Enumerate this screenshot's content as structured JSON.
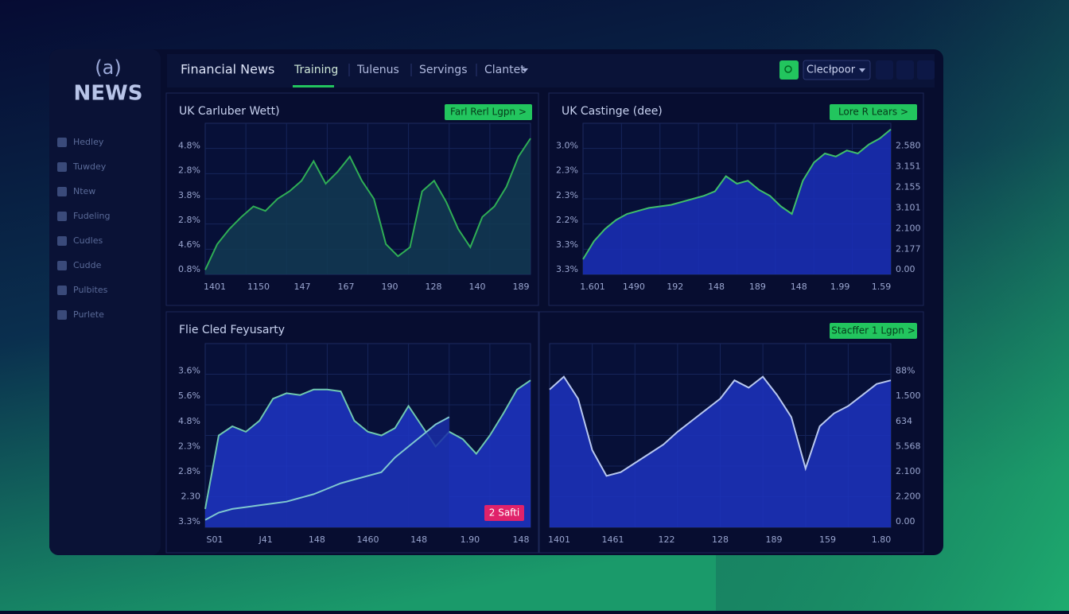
{
  "sidebar": {
    "logo_icon": "(a)",
    "logo": "NEWS",
    "items": [
      "Hedley",
      "Tuwdey",
      "Ntew",
      "Fudeling",
      "Cudles",
      "Cudde",
      "Pulbites",
      "Purlete"
    ]
  },
  "nav": {
    "title": "Financial News",
    "tabs": [
      "Training",
      "Tulenus",
      "Servings",
      "Clantet"
    ],
    "dropdown": "Clecłpoor"
  },
  "charts": [
    {
      "type": "area",
      "title": "UK Carluber Wett)",
      "button": "Farl Rerl Lgpn >",
      "y_labels": [
        "4.8%",
        "2.8%",
        "3.8%",
        "2.8%",
        "4.6%",
        "0.8%"
      ],
      "x_labels": [
        "1401",
        "1150",
        "147",
        "167",
        "190",
        "128",
        "140",
        "189"
      ],
      "ylim": [
        0,
        100
      ],
      "series": [
        {
          "color": "#2fae55",
          "fill": "#123a52",
          "values": [
            3,
            20,
            30,
            38,
            45,
            42,
            50,
            55,
            62,
            75,
            60,
            68,
            78,
            62,
            50,
            20,
            12,
            18,
            55,
            62,
            48,
            30,
            18,
            38,
            45,
            58,
            78,
            90
          ]
        }
      ]
    },
    {
      "type": "area",
      "title": "UK Castinge (dee)",
      "button": "Lore R Lears >",
      "y_labels": [
        "3.0%",
        "2.3%",
        "2.3%",
        "2.2%",
        "3.3%",
        "3.3%"
      ],
      "y2_labels": [
        "2.580",
        "3.151",
        "2.155",
        "3.101",
        "2.100",
        "2.177",
        "0.00"
      ],
      "x_labels": [
        "1.601",
        "1490",
        "192",
        "148",
        "189",
        "148",
        "1.99",
        "1.59"
      ],
      "ylim": [
        0,
        100
      ],
      "series": [
        {
          "color": "#3fbf6a",
          "fill": "#1a2fb8",
          "values": [
            10,
            22,
            30,
            36,
            40,
            42,
            44,
            45,
            46,
            48,
            50,
            52,
            55,
            65,
            60,
            62,
            56,
            52,
            45,
            40,
            62,
            74,
            80,
            78,
            82,
            80,
            86,
            90,
            96
          ]
        }
      ]
    },
    {
      "type": "area",
      "title": "Flie Cled Feyusarty",
      "badge": "2 Safti",
      "y_labels": [
        "3.6%",
        "5.6%",
        "4.8%",
        "2.3%",
        "2.8%",
        "2.30",
        "3.3%"
      ],
      "x_labels": [
        "S01",
        "J41",
        "148",
        "1460",
        "148",
        "1.90",
        "148"
      ],
      "ylim": [
        0,
        100
      ],
      "series": [
        {
          "color": "#6fc8b0",
          "fill": "#1d35c6",
          "values": [
            10,
            50,
            55,
            52,
            58,
            70,
            73,
            72,
            75,
            75,
            74,
            58,
            52,
            50,
            54,
            66,
            55,
            44,
            52,
            48,
            40,
            50,
            62,
            75,
            80
          ]
        },
        {
          "color": "#7fc8d0",
          "fill": "#1a2ea8",
          "values": [
            4,
            8,
            10,
            11,
            12,
            13,
            14,
            16,
            18,
            21,
            24,
            26,
            28,
            30,
            38,
            44,
            50,
            56,
            60
          ]
        }
      ]
    },
    {
      "type": "area",
      "y2_labels": [
        "88%",
        "1.500",
        "634",
        "5.568",
        "2.100",
        "2.200",
        "0.00"
      ],
      "button": "Stacffer 1 Lgpn >",
      "x_labels": [
        "1401",
        "1461",
        "122",
        "128",
        "189",
        "159",
        "1.80"
      ],
      "ylim": [
        0,
        100
      ],
      "series": [
        {
          "color": "#b8c8f0",
          "fill": "#1c33c0",
          "values": [
            75,
            82,
            70,
            42,
            28,
            30,
            35,
            40,
            45,
            52,
            58,
            64,
            70,
            80,
            76,
            82,
            72,
            60,
            32,
            55,
            62,
            66,
            72,
            78,
            80
          ]
        }
      ]
    }
  ]
}
